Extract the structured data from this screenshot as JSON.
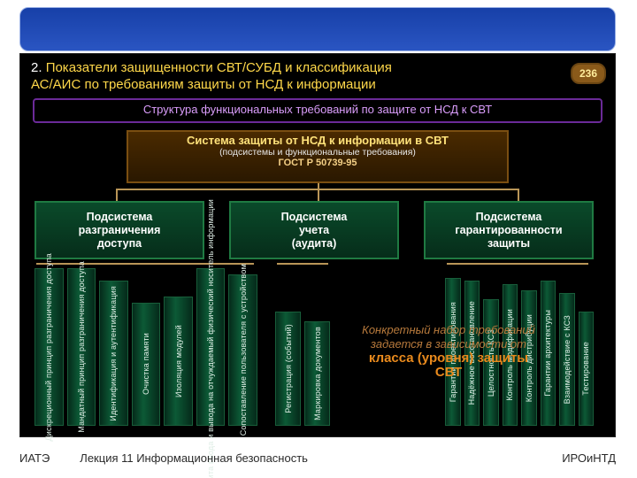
{
  "heading": {
    "number": "2.",
    "line1": "Показатели защищенности СВТ/СУБД и классификация",
    "line2": "АС/АИС по требованиям защиты от НСД к информации"
  },
  "page_badge": "236",
  "subtitle": "Структура функциональных требований по защите от НСД к СВТ",
  "root": {
    "l1": "Система защиты от НСД к информации в СВТ",
    "l2": "(подсистемы и функциональные требования)",
    "l3": "ГОСТ Р 50739-95"
  },
  "subsystems": [
    {
      "l1": "Подсистема",
      "l2": "разграничения",
      "l3": "доступа"
    },
    {
      "l1": "Подсистема",
      "l2": "учета",
      "l3": "(аудита)"
    },
    {
      "l1": "Подсистема",
      "l2": "гарантированности",
      "l3": "защиты"
    }
  ],
  "bars": {
    "g1": [
      "Дискреционный принцип разграничения доступа",
      "Мандатный принцип разграничения доступа",
      "Идентификация и аутентификация",
      "Очистка памяти",
      "Изоляция модулей",
      "Защита ввода и вывода на отчуждаемый физический носитель информации",
      "Сопоставление пользователя с устройством"
    ],
    "g2": [
      "Регистрация (событий)",
      "Маркировка документов"
    ],
    "g3": [
      "Гарантии проектирования",
      "Надёжное восстановление",
      "Целостность КСЗ",
      "Контроль модификации",
      "Контроль дистрибуции",
      "Гарантии архитектуры",
      "Взаимодействие с КСЗ",
      "Тестирование"
    ]
  },
  "callout": {
    "l1": "Конкретный набор требований",
    "l2": "задается в зависимости от",
    "emph1": "класса (уровня) защиты",
    "emph2": "СВТ"
  },
  "footer": {
    "left": "ИАТЭ",
    "mid": "Лекция 11 Информационная безопасность",
    "right": "ИРОиНТД"
  },
  "colors": {
    "accent_orange": "#e98a1d",
    "accent_yellow": "#ffd84a",
    "bar_green": "#0c5a36",
    "root_border": "#7a4e11"
  }
}
